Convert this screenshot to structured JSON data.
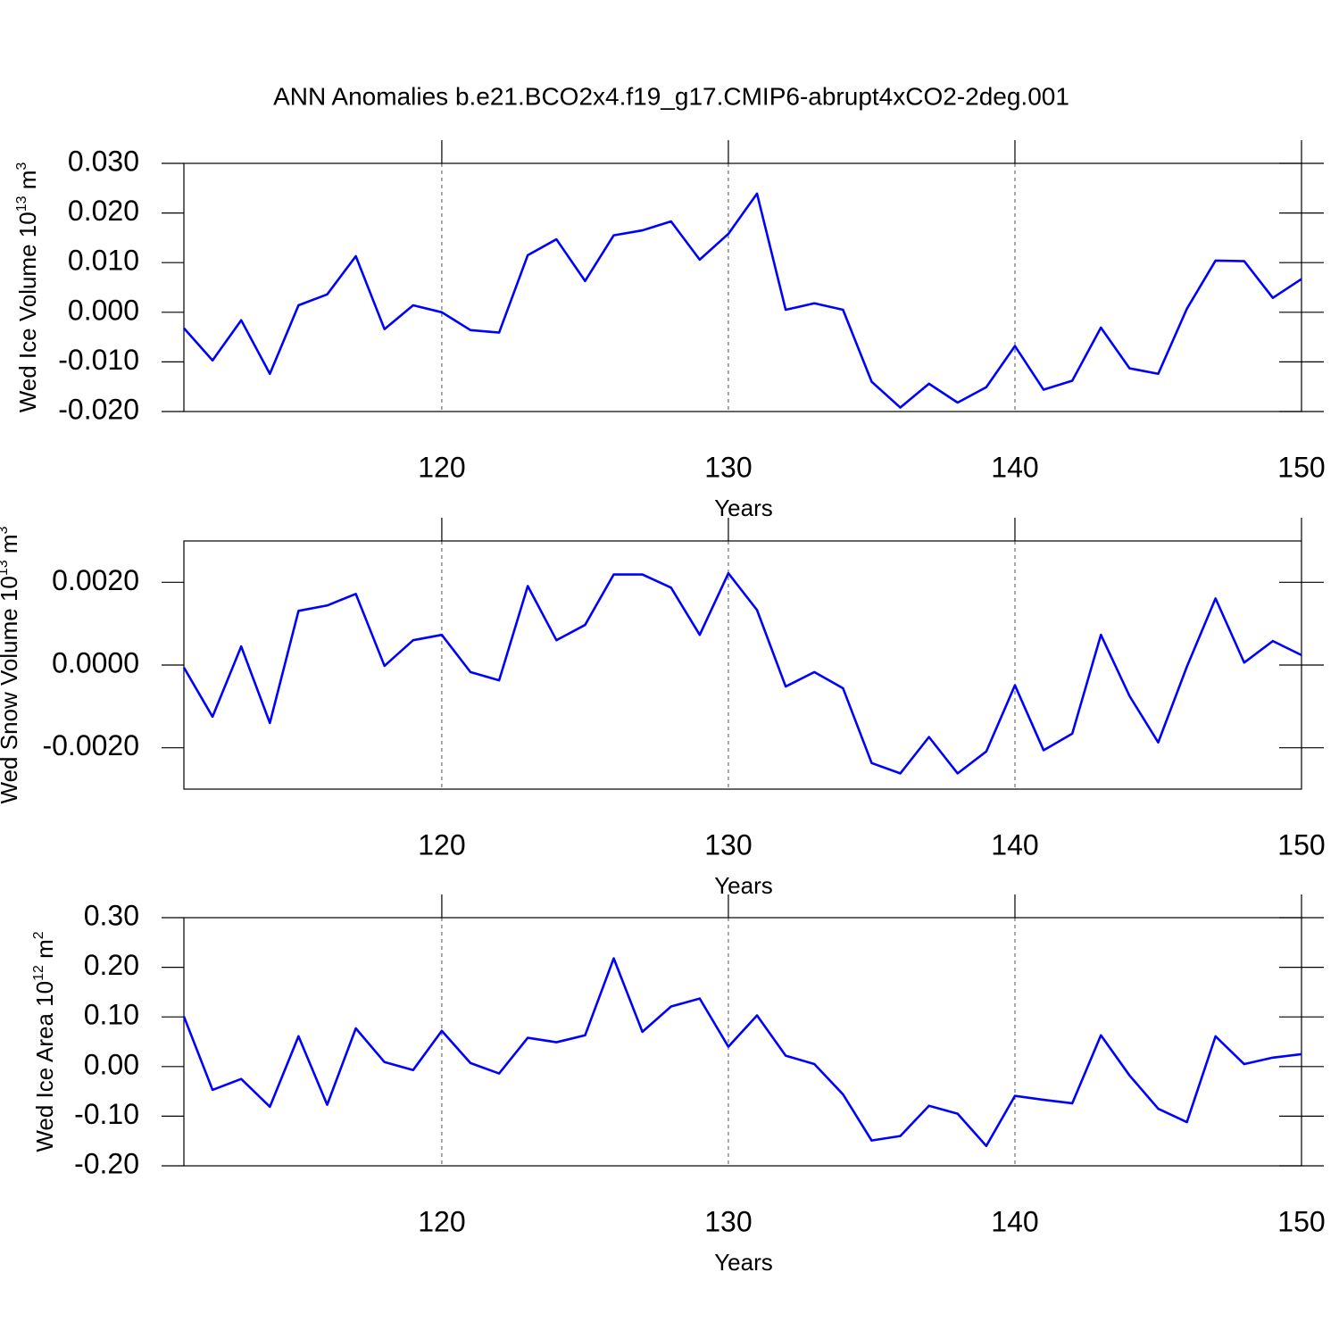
{
  "title": "ANN Anomalies b.e21.BCO2x4.f19_g17.CMIP6-abrupt4xCO2-2deg.001",
  "chart_data": [
    {
      "type": "line",
      "xlabel": "Years",
      "ylabel": [
        "Wed Ice Volume 10",
        "13",
        " m",
        "3"
      ],
      "x": [
        111,
        112,
        113,
        114,
        115,
        116,
        117,
        118,
        119,
        120,
        121,
        122,
        123,
        124,
        125,
        126,
        127,
        128,
        129,
        130,
        131,
        132,
        133,
        134,
        135,
        136,
        137,
        138,
        139,
        140,
        141,
        142,
        143,
        144,
        145,
        146,
        147,
        148,
        149,
        150
      ],
      "series": [
        {
          "color": "#0000ff",
          "values": [
            -0.0032,
            -0.0097,
            -0.0016,
            -0.0124,
            0.0014,
            0.0036,
            0.0113,
            -0.0034,
            0.0014,
            0.0,
            -0.0036,
            -0.0041,
            0.0115,
            0.0147,
            0.0063,
            0.0155,
            0.0165,
            0.0183,
            0.0106,
            0.0158,
            0.0239,
            0.0005,
            0.0018,
            0.0005,
            -0.014,
            -0.0192,
            -0.0144,
            -0.0182,
            -0.0151,
            -0.0068,
            -0.0156,
            -0.0138,
            -0.0031,
            -0.0113,
            -0.0124,
            0.0007,
            0.0104,
            0.0103,
            0.0029,
            0.0067
          ]
        }
      ],
      "xlim": [
        111,
        150
      ],
      "xticks": [
        120,
        130,
        140,
        150
      ],
      "ylim": [
        -0.02,
        0.03
      ],
      "yticks": [
        {
          "value": -0.02,
          "label": "-0.020"
        },
        {
          "value": -0.01,
          "label": "-0.010"
        },
        {
          "value": 0,
          "label": "0.000"
        },
        {
          "value": 0.01,
          "label": "0.010"
        },
        {
          "value": 0.02,
          "label": "0.020"
        },
        {
          "value": 0.03,
          "label": "0.030"
        }
      ],
      "grid": true
    },
    {
      "type": "line",
      "xlabel": "Years",
      "ylabel": [
        "Wed Snow Volume 10",
        "13",
        " m",
        "3"
      ],
      "x": [
        111,
        112,
        113,
        114,
        115,
        116,
        117,
        118,
        119,
        120,
        121,
        122,
        123,
        124,
        125,
        126,
        127,
        128,
        129,
        130,
        131,
        132,
        133,
        134,
        135,
        136,
        137,
        138,
        139,
        140,
        141,
        142,
        143,
        144,
        145,
        146,
        147,
        148,
        149,
        150
      ],
      "series": [
        {
          "color": "#0000ff",
          "values": [
            -6e-05,
            -0.00125,
            0.00045,
            -0.0014,
            0.00131,
            0.00144,
            0.00172,
            -2e-05,
            0.0006,
            0.00073,
            -0.00017,
            -0.00037,
            0.00191,
            0.0006,
            0.00097,
            0.00219,
            0.00219,
            0.00187,
            0.00073,
            0.00222,
            0.00133,
            -0.00052,
            -0.00017,
            -0.00056,
            -0.00237,
            -0.00262,
            -0.00174,
            -0.00262,
            -0.00209,
            -0.00049,
            -0.00206,
            -0.00166,
            0.00073,
            -0.00075,
            -0.00187,
            -4e-05,
            0.00161,
            6e-05,
            0.00058,
            0.00024
          ]
        }
      ],
      "xlim": [
        111,
        150
      ],
      "xticks": [
        120,
        130,
        140,
        150
      ],
      "ylim": [
        -0.003,
        0.003
      ],
      "yticks": [
        {
          "value": -0.002,
          "label": "-0.0020"
        },
        {
          "value": 0,
          "label": "0.0000"
        },
        {
          "value": 0.002,
          "label": "0.0020"
        }
      ],
      "grid": true
    },
    {
      "type": "line",
      "xlabel": "Years",
      "ylabel": [
        "Wed Ice Area 10",
        "12",
        " m",
        "2"
      ],
      "x": [
        111,
        112,
        113,
        114,
        115,
        116,
        117,
        118,
        119,
        120,
        121,
        122,
        123,
        124,
        125,
        126,
        127,
        128,
        129,
        130,
        131,
        132,
        133,
        134,
        135,
        136,
        137,
        138,
        139,
        140,
        141,
        142,
        143,
        144,
        145,
        146,
        147,
        148,
        149,
        150
      ],
      "series": [
        {
          "color": "#0000ff",
          "values": [
            0.101,
            -0.047,
            -0.025,
            -0.081,
            0.061,
            -0.077,
            0.077,
            0.009,
            -0.007,
            0.072,
            0.007,
            -0.014,
            0.058,
            0.049,
            0.063,
            0.218,
            0.07,
            0.121,
            0.137,
            0.04,
            0.103,
            0.022,
            0.005,
            -0.056,
            -0.149,
            -0.14,
            -0.079,
            -0.095,
            -0.16,
            -0.059,
            -0.067,
            -0.074,
            0.063,
            -0.018,
            -0.085,
            -0.112,
            0.061,
            0.005,
            0.018,
            0.025
          ]
        }
      ],
      "xlim": [
        111,
        150
      ],
      "xticks": [
        120,
        130,
        140,
        150
      ],
      "ylim": [
        -0.2,
        0.3
      ],
      "yticks": [
        {
          "value": -0.2,
          "label": "-0.20"
        },
        {
          "value": -0.1,
          "label": "-0.10"
        },
        {
          "value": 0,
          "label": "0.00"
        },
        {
          "value": 0.1,
          "label": "0.10"
        },
        {
          "value": 0.2,
          "label": "0.20"
        },
        {
          "value": 0.3,
          "label": "0.30"
        }
      ],
      "grid": true
    }
  ]
}
